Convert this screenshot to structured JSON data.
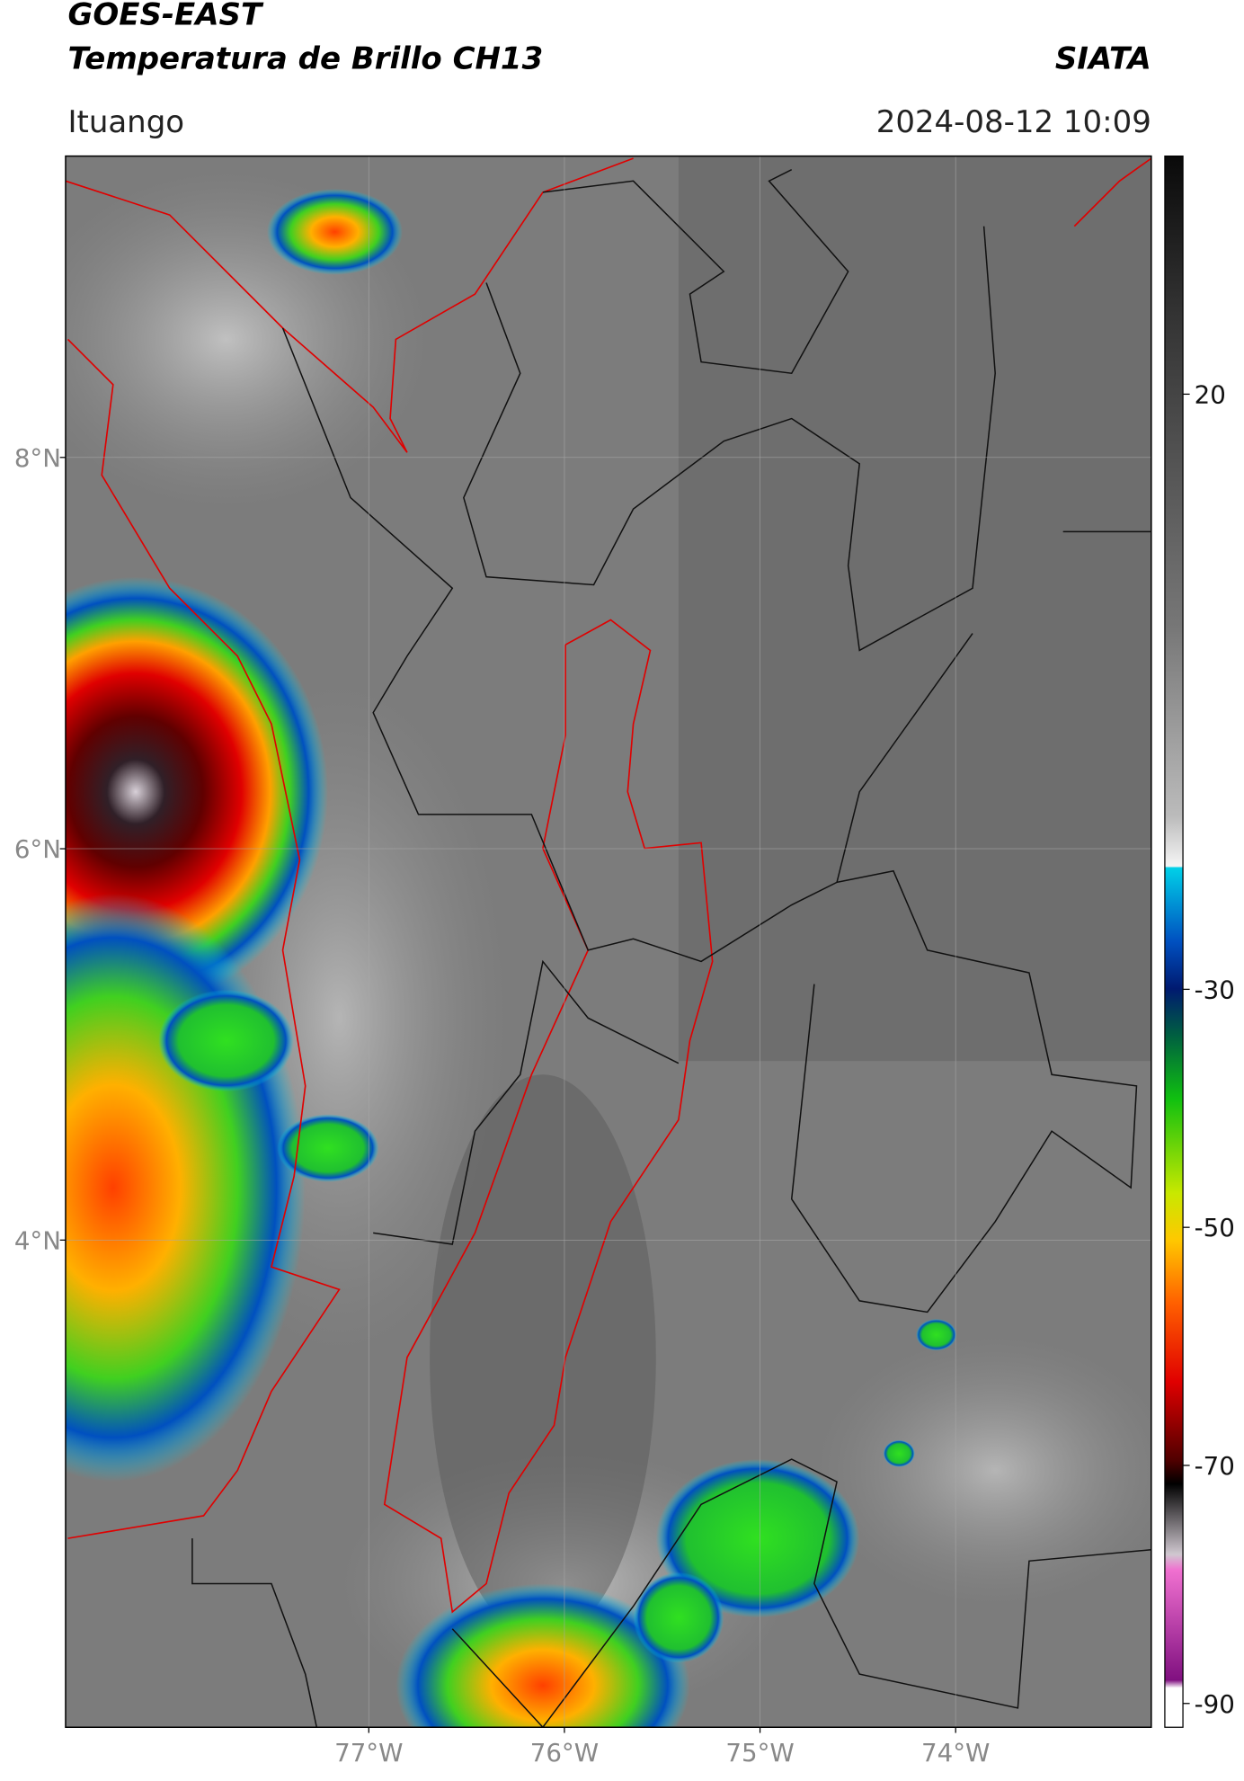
{
  "header": {
    "line1": "GOES-EAST",
    "line2": "Temperatura de Brillo CH13",
    "source": "SIATA",
    "place": "Ituango",
    "datetime": "2024-08-12 10:09"
  },
  "map": {
    "lat_range": [
      1.51,
      9.54
    ],
    "lon_range": [
      -78.55,
      -73.0
    ],
    "lat_ticks": [
      {
        "value": 8,
        "label": "8°N"
      },
      {
        "value": 6,
        "label": "6°N"
      },
      {
        "value": 4,
        "label": "4°N"
      }
    ],
    "lon_ticks": [
      {
        "value": -77,
        "label": "77°W"
      },
      {
        "value": -76,
        "label": "76°W"
      },
      {
        "value": -75,
        "label": "75°W"
      },
      {
        "value": -74,
        "label": "74°W"
      }
    ]
  },
  "colorbar": {
    "range": [
      -92,
      40
    ],
    "ticks": [
      20,
      -30,
      -50,
      -70,
      -90
    ]
  }
}
